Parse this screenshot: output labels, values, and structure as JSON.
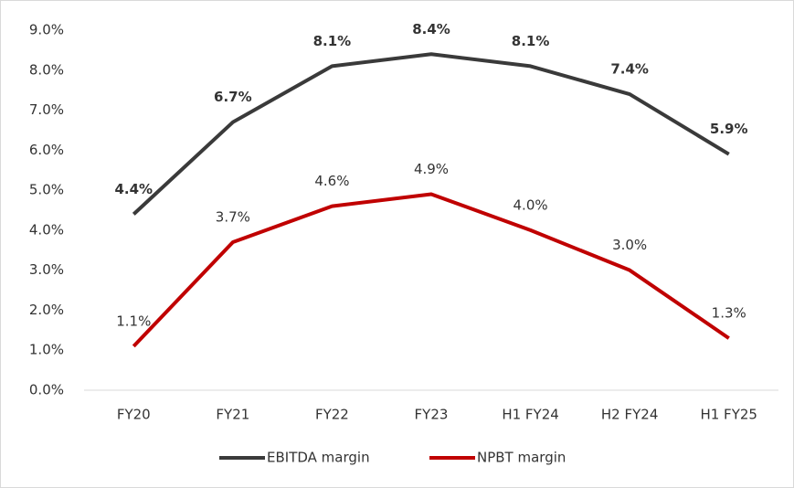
{
  "chart_data": {
    "type": "line",
    "categories": [
      "FY20",
      "FY21",
      "FY22",
      "FY23",
      "H1 FY24",
      "H2 FY24",
      "H1 FY25"
    ],
    "series": [
      {
        "name": "EBITDA margin",
        "color": "#3a3a3a",
        "values": [
          4.4,
          6.7,
          8.1,
          8.4,
          8.1,
          7.4,
          5.9
        ],
        "value_labels": [
          "4.4%",
          "6.7%",
          "8.1%",
          "8.4%",
          "8.1%",
          "7.4%",
          "5.9%"
        ]
      },
      {
        "name": "NPBT margin",
        "color": "#c00000",
        "values": [
          1.1,
          3.7,
          4.6,
          4.9,
          4.0,
          3.0,
          1.3
        ],
        "value_labels": [
          "1.1%",
          "3.7%",
          "4.6%",
          "4.9%",
          "4.0%",
          "3.0%",
          "1.3%"
        ]
      }
    ],
    "ylim": [
      0,
      9
    ],
    "yticks": [
      {
        "value": 0,
        "label": "0.0%"
      },
      {
        "value": 1,
        "label": "1.0%"
      },
      {
        "value": 2,
        "label": "2.0%"
      },
      {
        "value": 3,
        "label": "3.0%"
      },
      {
        "value": 4,
        "label": "4.0%"
      },
      {
        "value": 5,
        "label": "5.0%"
      },
      {
        "value": 6,
        "label": "6.0%"
      },
      {
        "value": 7,
        "label": "7.0%"
      },
      {
        "value": 8,
        "label": "8.0%"
      },
      {
        "value": 9,
        "label": "9.0%"
      }
    ],
    "grid": false,
    "legend": "bottom"
  }
}
